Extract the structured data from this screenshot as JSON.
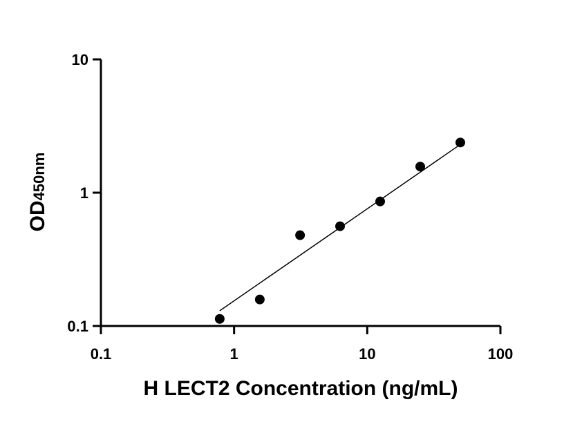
{
  "chart_data": {
    "type": "scatter",
    "x_scale": "log",
    "y_scale": "log",
    "xlim": [
      0.1,
      100
    ],
    "ylim": [
      0.1,
      10
    ],
    "x_ticks": [
      "0.1",
      "1",
      "10",
      "100"
    ],
    "y_ticks": [
      "0.1",
      "1",
      "10"
    ],
    "xlabel": "H LECT2 Concentration (ng/mL)",
    "ylabel_main": "OD",
    "ylabel_sub": "450nm",
    "grid": false,
    "points": [
      {
        "x": 0.78,
        "y": 0.113
      },
      {
        "x": 1.56,
        "y": 0.158
      },
      {
        "x": 3.13,
        "y": 0.48
      },
      {
        "x": 6.25,
        "y": 0.56
      },
      {
        "x": 12.5,
        "y": 0.86
      },
      {
        "x": 25,
        "y": 1.57
      },
      {
        "x": 50,
        "y": 2.38
      }
    ],
    "fit_line": [
      {
        "x": 0.78,
        "y": 0.13
      },
      {
        "x": 50,
        "y": 2.3
      }
    ],
    "colors": {
      "marker": "#000000",
      "line": "#000000"
    }
  }
}
